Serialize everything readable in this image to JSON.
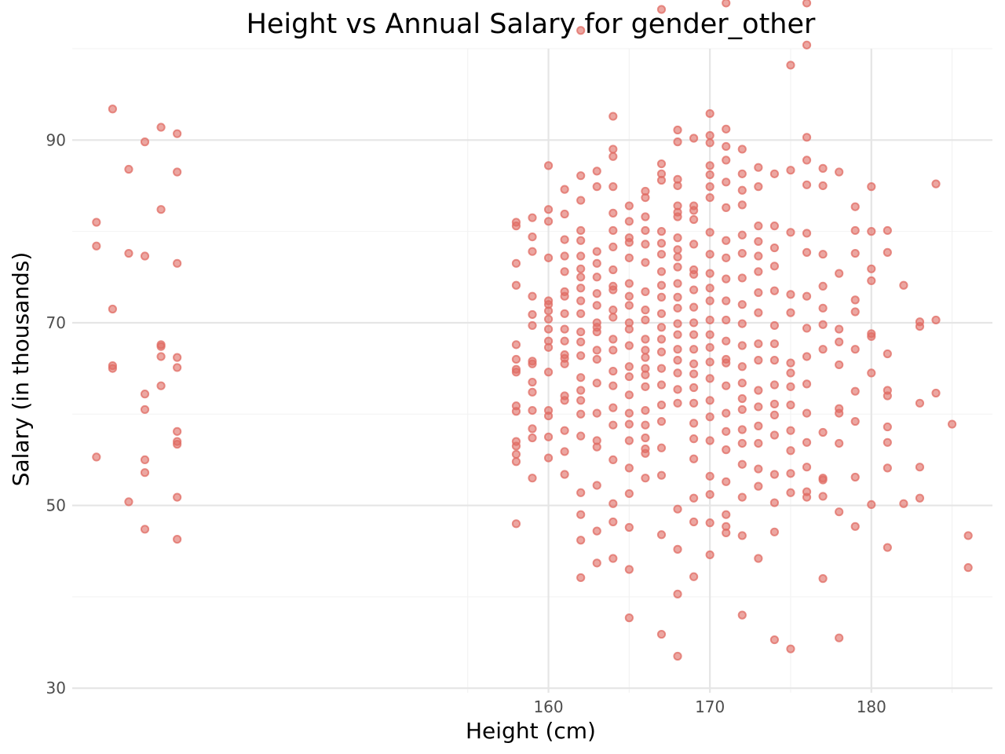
{
  "colors": {
    "points": "#E06B63",
    "background": "#ffffff",
    "grid_major": "#e5e5e5",
    "grid_minor": "#f2f2f2"
  },
  "chart_data": {
    "type": "scatter",
    "title": "Height vs Annual Salary for gender_other",
    "xlabel": "Height (cm)",
    "ylabel": "Salary (in thousands)",
    "xlim": [
      130.5,
      187.5
    ],
    "ylim": [
      29.5,
      100.0
    ],
    "xticks": [
      160,
      170,
      180
    ],
    "yticks": [
      30,
      50,
      70,
      90
    ],
    "x_tick_labels": [
      "160",
      "170",
      "180"
    ],
    "y_tick_labels": [
      "30",
      "50",
      "70",
      "90"
    ],
    "grid": true,
    "legend": "none",
    "series": [
      {
        "x": [
          132,
          132,
          132,
          133,
          133,
          133,
          133,
          134,
          134,
          134,
          135,
          135,
          135,
          135,
          135,
          135,
          135,
          136,
          136,
          136,
          136,
          136,
          136,
          137,
          137,
          137,
          137,
          137,
          137,
          137,
          137,
          137,
          137,
          158,
          158,
          158,
          158,
          158,
          158,
          158,
          158,
          158,
          158,
          158,
          158,
          158,
          158,
          158,
          159,
          159,
          159,
          159,
          159,
          159,
          159,
          159,
          159,
          159,
          159,
          159,
          159,
          159,
          160,
          160,
          160,
          160,
          160,
          160,
          160,
          160,
          160,
          160,
          160,
          160,
          160,
          160,
          160,
          160,
          161,
          161,
          161,
          161,
          161,
          161,
          161,
          161,
          161,
          161,
          161,
          161,
          161,
          161,
          161,
          161,
          161,
          161,
          162,
          162,
          162,
          162,
          162,
          162,
          162,
          162,
          162,
          162,
          162,
          162,
          162,
          162,
          162,
          162,
          162,
          162,
          162,
          162,
          162,
          162,
          162,
          163,
          163,
          163,
          163,
          163,
          163,
          163,
          163,
          163,
          163,
          163,
          163,
          163,
          163,
          163,
          163,
          163,
          163,
          163,
          164,
          164,
          164,
          164,
          164,
          164,
          164,
          164,
          164,
          164,
          164,
          164,
          164,
          164,
          164,
          164,
          164,
          164,
          164,
          164,
          164,
          164,
          165,
          165,
          165,
          165,
          165,
          165,
          165,
          165,
          165,
          165,
          165,
          165,
          165,
          165,
          165,
          165,
          165,
          165,
          165,
          165,
          165,
          165,
          166,
          166,
          166,
          166,
          166,
          166,
          166,
          166,
          166,
          166,
          166,
          166,
          166,
          166,
          166,
          166,
          166,
          166,
          166,
          166,
          166,
          167,
          167,
          167,
          167,
          167,
          167,
          167,
          167,
          167,
          167,
          167,
          167,
          167,
          167,
          167,
          167,
          167,
          167,
          167,
          167,
          167,
          167,
          168,
          168,
          168,
          168,
          168,
          168,
          168,
          168,
          168,
          168,
          168,
          168,
          168,
          168,
          168,
          168,
          168,
          168,
          168,
          168,
          168,
          168,
          168,
          168,
          168,
          169,
          169,
          169,
          169,
          169,
          169,
          169,
          169,
          169,
          169,
          169,
          169,
          169,
          169,
          169,
          169,
          169,
          169,
          169,
          169,
          169,
          169,
          170,
          170,
          170,
          170,
          170,
          170,
          170,
          170,
          170,
          170,
          170,
          170,
          170,
          170,
          170,
          170,
          170,
          170,
          170,
          170,
          170,
          170,
          170,
          170,
          171,
          171,
          171,
          171,
          171,
          171,
          171,
          171,
          171,
          171,
          171,
          171,
          171,
          171,
          171,
          171,
          171,
          171,
          171,
          171,
          171,
          171,
          172,
          172,
          172,
          172,
          172,
          172,
          172,
          172,
          172,
          172,
          172,
          172,
          172,
          172,
          172,
          172,
          172,
          172,
          172,
          172,
          173,
          173,
          173,
          173,
          173,
          173,
          173,
          173,
          173,
          173,
          173,
          173,
          173,
          173,
          173,
          173,
          173,
          174,
          174,
          174,
          174,
          174,
          174,
          174,
          174,
          174,
          174,
          174,
          174,
          174,
          174,
          174,
          174,
          175,
          175,
          175,
          175,
          175,
          175,
          175,
          175,
          175,
          175,
          175,
          175,
          175,
          175,
          176,
          176,
          176,
          176,
          176,
          176,
          176,
          176,
          176,
          176,
          176,
          176,
          176,
          176,
          176,
          176,
          177,
          177,
          177,
          177,
          177,
          177,
          177,
          177,
          177,
          177,
          177,
          177,
          178,
          178,
          178,
          178,
          178,
          178,
          178,
          178,
          178,
          178,
          179,
          179,
          179,
          179,
          179,
          179,
          179,
          179,
          179,
          179,
          180,
          180,
          180,
          180,
          180,
          180,
          180,
          180,
          181,
          181,
          181,
          181,
          181,
          181,
          181,
          181,
          181,
          182,
          182,
          183,
          183,
          183,
          183,
          183,
          184,
          184,
          184,
          185,
          186,
          186
        ],
        "y": [
          81.0,
          78.4,
          55.3,
          93.4,
          71.5,
          65.0,
          65.3,
          86.8,
          77.6,
          50.4,
          89.8,
          77.3,
          62.2,
          60.5,
          55.0,
          53.6,
          47.4,
          91.4,
          82.4,
          67.6,
          67.4,
          66.3,
          63.1,
          57.0,
          90.7,
          86.5,
          76.5,
          66.2,
          65.1,
          58.1,
          56.7,
          50.9,
          46.3,
          81.0,
          80.6,
          76.5,
          74.1,
          67.6,
          66.0,
          64.9,
          64.6,
          60.9,
          60.3,
          57.0,
          56.5,
          55.6,
          54.8,
          48.0,
          81.5,
          79.4,
          77.8,
          72.9,
          70.9,
          69.7,
          65.8,
          65.5,
          63.5,
          62.4,
          60.4,
          58.4,
          57.4,
          53.0,
          87.2,
          82.4,
          81.1,
          77.1,
          72.4,
          72.0,
          71.3,
          70.4,
          69.3,
          68.0,
          67.3,
          64.6,
          60.4,
          59.8,
          57.5,
          55.2,
          84.6,
          81.9,
          79.1,
          77.3,
          75.6,
          73.4,
          72.9,
          71.0,
          69.3,
          68.0,
          66.5,
          66.1,
          65.5,
          62.0,
          61.5,
          58.2,
          55.9,
          53.4,
          102.0,
          86.1,
          83.4,
          80.1,
          79.0,
          77.3,
          75.9,
          75.0,
          73.8,
          72.4,
          71.0,
          69.0,
          67.9,
          66.4,
          64.0,
          62.6,
          61.5,
          60.0,
          57.6,
          51.4,
          49.0,
          46.2,
          42.1,
          86.6,
          84.9,
          77.8,
          76.5,
          75.0,
          73.2,
          71.9,
          70.0,
          69.5,
          69.0,
          67.0,
          66.0,
          63.4,
          60.1,
          57.1,
          56.4,
          52.2,
          47.2,
          43.7,
          92.6,
          89.0,
          88.2,
          84.9,
          82.0,
          80.1,
          78.3,
          75.8,
          74.0,
          73.6,
          71.4,
          70.6,
          68.2,
          67.0,
          64.7,
          63.1,
          60.7,
          58.8,
          55.0,
          50.2,
          48.2,
          44.2,
          82.8,
          81.1,
          79.3,
          78.8,
          77.1,
          74.3,
          72.9,
          71.9,
          70.0,
          69.3,
          67.5,
          65.2,
          64.1,
          62.1,
          60.1,
          58.9,
          57.1,
          54.1,
          51.3,
          47.6,
          43.0,
          37.7,
          84.4,
          83.7,
          81.6,
          80.1,
          78.6,
          76.6,
          73.4,
          71.4,
          70.3,
          68.2,
          67.0,
          66.2,
          65.0,
          64.3,
          63.0,
          60.4,
          58.8,
          57.4,
          56.2,
          55.7,
          53.0,
          104.3,
          87.4,
          86.3,
          85.6,
          80.0,
          78.7,
          77.5,
          75.6,
          74.1,
          72.8,
          71.0,
          69.5,
          68.2,
          66.8,
          65.0,
          63.2,
          61.0,
          59.2,
          56.3,
          53.3,
          46.8,
          35.9,
          91.1,
          89.8,
          85.7,
          85.0,
          82.8,
          82.1,
          81.6,
          79.3,
          78.0,
          77.2,
          76.1,
          74.3,
          72.8,
          71.6,
          69.9,
          68.7,
          67.1,
          65.9,
          64.5,
          62.7,
          61.2,
          49.6,
          45.2,
          40.3,
          33.5,
          90.2,
          82.8,
          82.3,
          81.3,
          78.6,
          75.8,
          75.3,
          73.6,
          71.7,
          70.0,
          68.7,
          67.1,
          65.5,
          64.4,
          62.9,
          61.2,
          59.0,
          57.3,
          55.1,
          50.8,
          48.2,
          42.2,
          92.9,
          90.5,
          89.7,
          87.2,
          86.2,
          84.9,
          83.7,
          79.9,
          77.5,
          75.4,
          73.8,
          72.4,
          70.3,
          68.7,
          67.3,
          65.7,
          63.9,
          61.5,
          59.7,
          57.1,
          53.2,
          51.2,
          48.1,
          44.6,
          105.0,
          91.2,
          89.3,
          87.8,
          85.4,
          82.6,
          79.0,
          77.1,
          74.8,
          72.4,
          70.3,
          68.0,
          66.0,
          65.6,
          63.1,
          60.1,
          58.1,
          56.1,
          52.6,
          49.0,
          47.7,
          47.0,
          89.0,
          86.3,
          84.5,
          82.9,
          79.6,
          77.6,
          74.9,
          72.0,
          69.9,
          67.5,
          65.2,
          63.4,
          61.7,
          60.5,
          58.3,
          56.8,
          54.5,
          50.9,
          46.7,
          38.0,
          87.0,
          84.9,
          80.6,
          78.9,
          77.3,
          75.6,
          73.3,
          71.1,
          67.7,
          65.9,
          62.6,
          60.8,
          58.7,
          56.8,
          54.0,
          52.1,
          44.2,
          86.3,
          80.6,
          78.2,
          76.2,
          73.5,
          69.7,
          67.7,
          65.9,
          63.2,
          61.1,
          59.9,
          57.7,
          53.4,
          50.3,
          47.1,
          35.3,
          98.2,
          86.7,
          79.9,
          73.1,
          71.1,
          65.6,
          64.5,
          63.0,
          61.0,
          58.2,
          56.0,
          53.5,
          51.4,
          34.3,
          105.0,
          100.4,
          90.3,
          87.8,
          85.1,
          79.8,
          77.7,
          72.9,
          69.4,
          66.3,
          63.3,
          60.1,
          56.9,
          54.2,
          51.5,
          50.9,
          86.9,
          85.0,
          77.5,
          74.0,
          71.6,
          69.8,
          67.1,
          58.0,
          53.0,
          52.8,
          51.0,
          42.0,
          86.5,
          75.4,
          69.3,
          67.9,
          65.4,
          60.6,
          60.1,
          56.8,
          49.3,
          35.5,
          82.7,
          80.1,
          77.6,
          72.5,
          71.2,
          67.1,
          62.5,
          59.2,
          53.1,
          47.7,
          84.9,
          80.0,
          75.9,
          74.6,
          68.8,
          68.5,
          64.5,
          50.1,
          80.1,
          77.7,
          66.6,
          62.6,
          58.6,
          56.9,
          54.1,
          45.4,
          62.0,
          74.1,
          50.2,
          70.1,
          69.6,
          61.2,
          54.2,
          50.8,
          85.2,
          70.3,
          62.3,
          58.9,
          46.7,
          43.2
        ]
      }
    ]
  }
}
